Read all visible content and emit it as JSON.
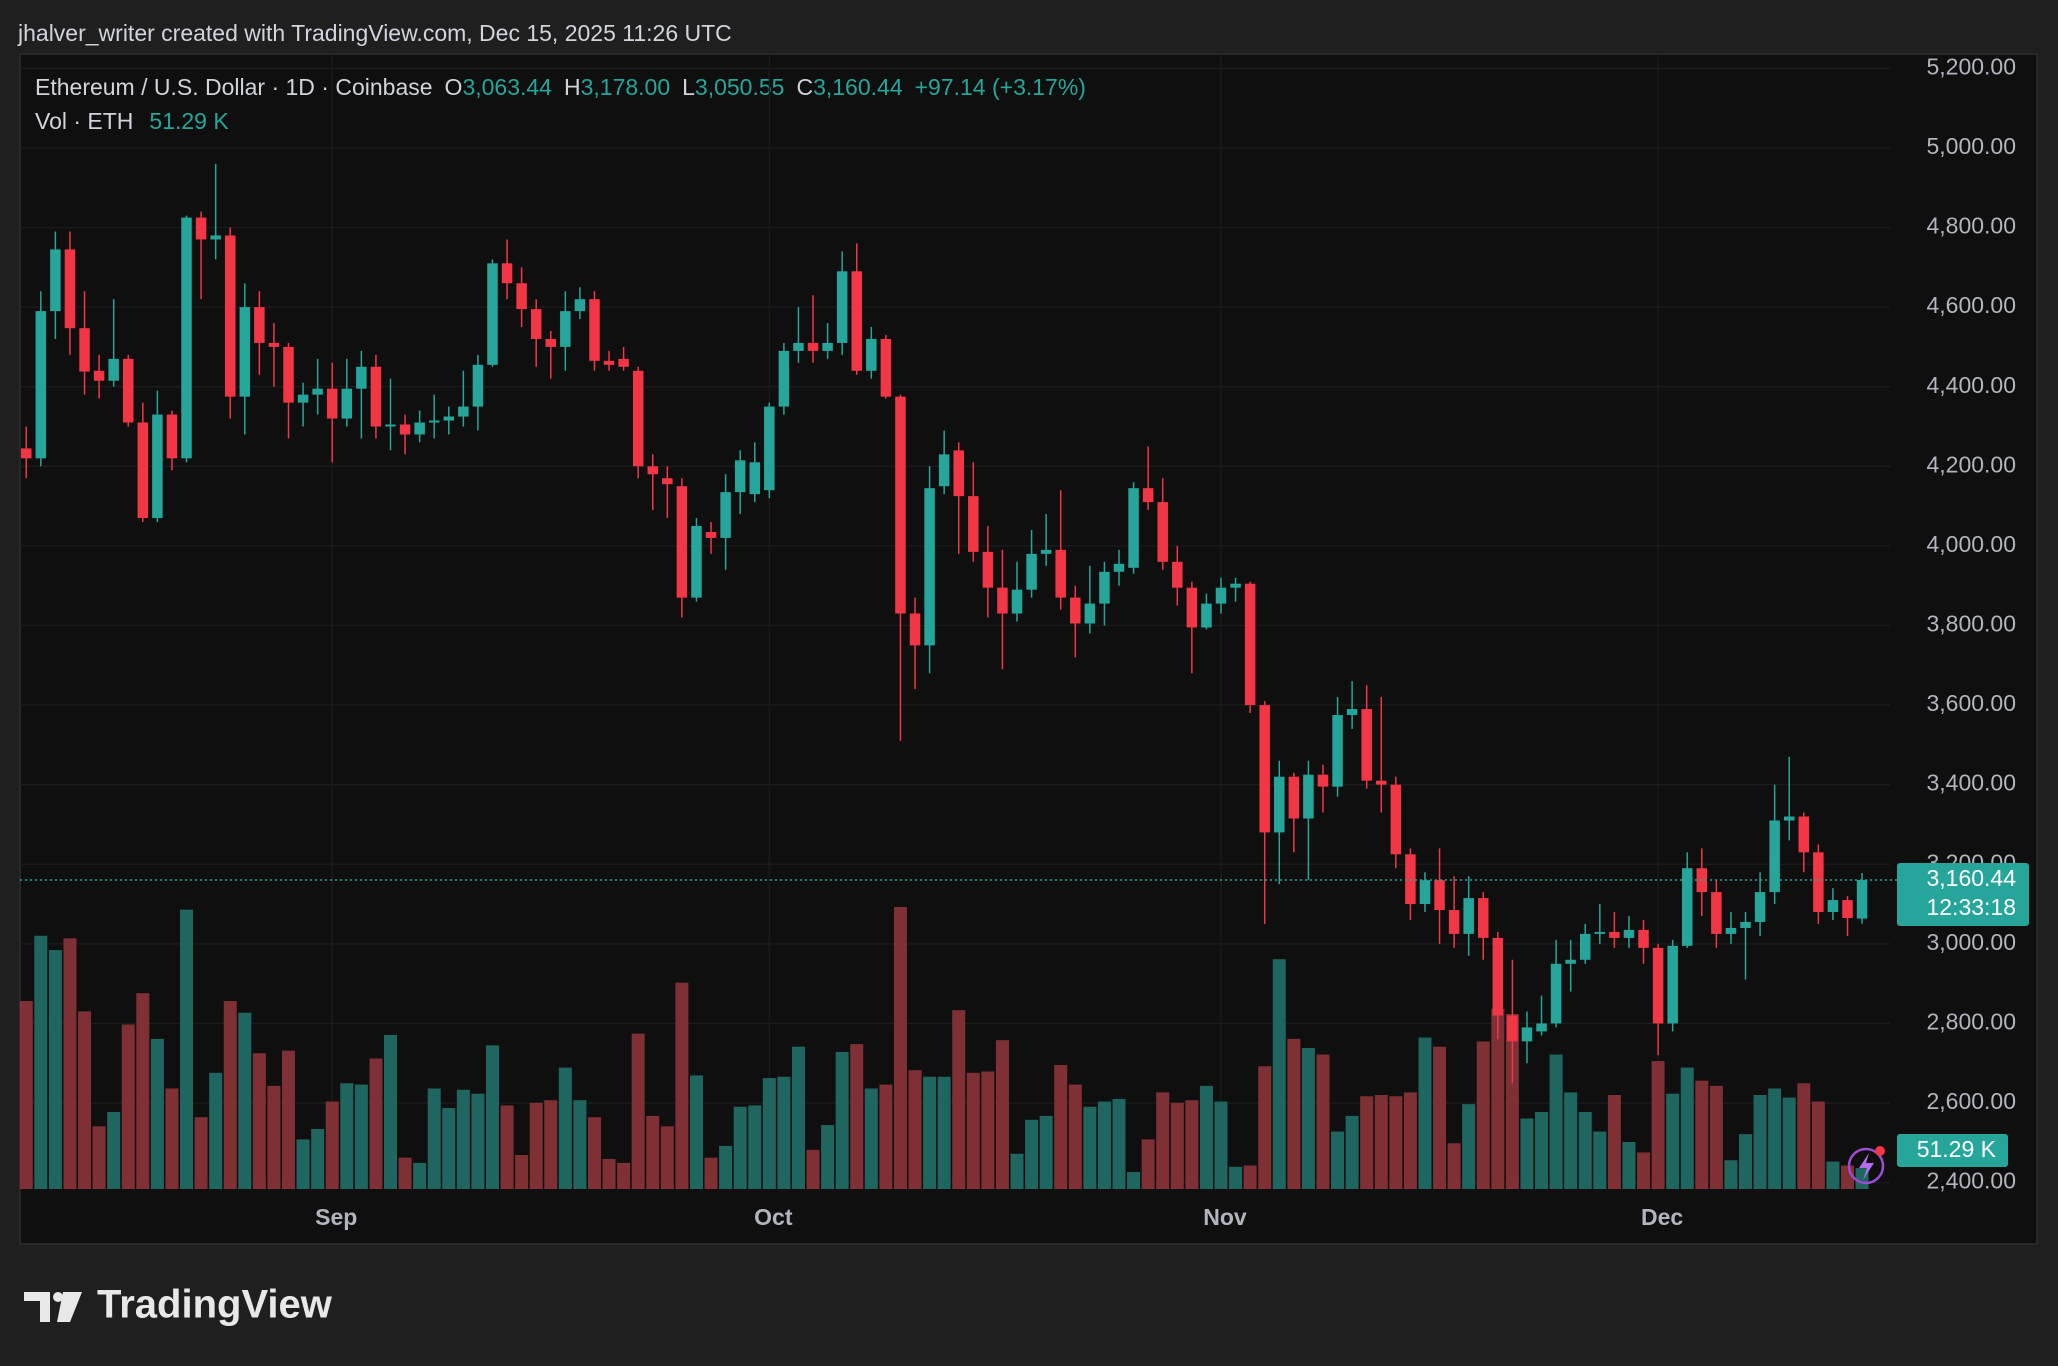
{
  "attribution": "jhalver_writer created with TradingView.com, Dec 15, 2025 11:26 UTC",
  "legend": {
    "symbol": "Ethereum / U.S. Dollar · 1D · Coinbase",
    "open_label": "O",
    "open": "3,063.44",
    "high_label": "H",
    "high": "3,178.00",
    "low_label": "L",
    "low": "3,050.55",
    "close_label": "C",
    "close": "3,160.44",
    "change": "+97.14 (+3.17%)",
    "volume_label": "Vol · ETH",
    "volume": "51.29 K"
  },
  "footer": {
    "brand": "TradingView"
  },
  "chart_data": {
    "type": "candlestick",
    "title": "Ethereum / U.S. Dollar · 1D · Coinbase",
    "up_color": "#26a69a",
    "down_color": "#f23645",
    "volume_up_color": "#1f6660",
    "volume_down_color": "#7f3034",
    "countdown": "12:33:18",
    "grid": true,
    "ylim": [
      2384,
      5236
    ],
    "yticks": [
      {
        "value": 2400,
        "label": "2,400.00"
      },
      {
        "value": 2600,
        "label": "2,600.00"
      },
      {
        "value": 2800,
        "label": "2,800.00"
      },
      {
        "value": 3000,
        "label": "3,000.00"
      },
      {
        "value": 3200,
        "label": "3,200.00"
      },
      {
        "value": 3400,
        "label": "3,400.00"
      },
      {
        "value": 3600,
        "label": "3,600.00"
      },
      {
        "value": 3800,
        "label": "3,800.00"
      },
      {
        "value": 4000,
        "label": "4,000.00"
      },
      {
        "value": 4200,
        "label": "4,200.00"
      },
      {
        "value": 4400,
        "label": "4,400.00"
      },
      {
        "value": 4600,
        "label": "4,600.00"
      },
      {
        "value": 4800,
        "label": "4,800.00"
      },
      {
        "value": 5000,
        "label": "5,000.00"
      },
      {
        "value": 5200,
        "label": "5,200.00"
      }
    ],
    "categories": [
      null,
      null,
      null,
      null,
      null,
      null,
      null,
      null,
      null,
      null,
      null,
      null,
      null,
      null,
      null,
      null,
      null,
      null,
      null,
      null,
      null,
      "Sep",
      null,
      null,
      null,
      null,
      null,
      null,
      null,
      null,
      null,
      null,
      null,
      null,
      null,
      null,
      null,
      null,
      null,
      null,
      null,
      null,
      null,
      null,
      null,
      null,
      null,
      null,
      null,
      null,
      null,
      "Oct",
      null,
      null,
      null,
      null,
      null,
      null,
      null,
      null,
      null,
      null,
      null,
      null,
      null,
      null,
      null,
      null,
      null,
      null,
      null,
      null,
      null,
      null,
      null,
      null,
      null,
      null,
      null,
      null,
      null,
      null,
      "Nov",
      null,
      null,
      null,
      null,
      null,
      null,
      null,
      null,
      null,
      null,
      null,
      null,
      null,
      null,
      null,
      null,
      null,
      null,
      null,
      null,
      null,
      null,
      null,
      null,
      null,
      null,
      null,
      null,
      null,
      "Dec",
      null,
      null,
      null,
      null,
      null,
      null,
      null,
      null,
      null,
      null,
      null,
      null,
      null,
      null
    ],
    "open": [
      4245,
      4220,
      4590,
      4745,
      4547,
      4440,
      4415,
      4470,
      4310,
      4070,
      4330,
      4220,
      4825,
      4770,
      4780,
      4375,
      4600,
      4510,
      4500,
      4360,
      4380,
      4395,
      4320,
      4395,
      4450,
      4300,
      4305,
      4280,
      4310,
      4315,
      4325,
      4350,
      4455,
      4710,
      4660,
      4595,
      4520,
      4500,
      4590,
      4620,
      4465,
      4470,
      4440,
      4200,
      4170,
      4150,
      3870,
      4035,
      4020,
      4135,
      4130,
      4140,
      4350,
      4490,
      4510,
      4490,
      4510,
      4690,
      4440,
      4520,
      4375,
      3830,
      3750,
      4150,
      4240,
      4125,
      3985,
      3895,
      3830,
      3890,
      3980,
      3990,
      3870,
      3805,
      3855,
      3935,
      3945,
      4145,
      4110,
      3960,
      3895,
      3795,
      3855,
      3895,
      3905,
      3600,
      3280,
      3420,
      3315,
      3425,
      3395,
      3575,
      3590,
      3410,
      3400,
      3225,
      3100,
      3160,
      3085,
      3025,
      3115,
      3015,
      2820,
      2755,
      2780,
      2800,
      2950,
      2960,
      3025,
      3030,
      3015,
      3035,
      2990,
      2800,
      2995,
      3190,
      3130,
      3025,
      3040,
      3055,
      3130,
      3310,
      3320,
      3230,
      3080,
      3110,
      3063.44
    ],
    "high": [
      4300,
      4640,
      4790,
      4790,
      4640,
      4480,
      4620,
      4480,
      4360,
      4390,
      4340,
      4830,
      4840,
      4960,
      4800,
      4660,
      4640,
      4560,
      4510,
      4410,
      4470,
      4460,
      4470,
      4490,
      4480,
      4420,
      4330,
      4340,
      4380,
      4350,
      4440,
      4480,
      4720,
      4770,
      4700,
      4620,
      4540,
      4640,
      4650,
      4640,
      4490,
      4500,
      4450,
      4230,
      4200,
      4170,
      4070,
      4060,
      4180,
      4240,
      4260,
      4360,
      4510,
      4600,
      4630,
      4560,
      4740,
      4760,
      4550,
      4530,
      4380,
      3870,
      4200,
      4290,
      4260,
      4210,
      4050,
      3990,
      3960,
      4040,
      4080,
      4140,
      3900,
      3950,
      3960,
      3990,
      4160,
      4250,
      4170,
      4000,
      3910,
      3880,
      3920,
      3920,
      3910,
      3610,
      3460,
      3430,
      3460,
      3450,
      3620,
      3660,
      3650,
      3620,
      3420,
      3240,
      3180,
      3240,
      3170,
      3170,
      3130,
      3030,
      2960,
      2830,
      2870,
      3010,
      3010,
      3050,
      3100,
      3080,
      3070,
      3060,
      3000,
      3010,
      3230,
      3240,
      3160,
      3080,
      3080,
      3180,
      3400,
      3470,
      3330,
      3250,
      3140,
      3120,
      3178
    ],
    "low": [
      4170,
      4200,
      4520,
      4480,
      4380,
      4370,
      4400,
      4300,
      4060,
      4060,
      4190,
      4210,
      4620,
      4720,
      4320,
      4280,
      4430,
      4400,
      4270,
      4300,
      4330,
      4210,
      4300,
      4270,
      4270,
      4240,
      4230,
      4260,
      4270,
      4280,
      4300,
      4290,
      4450,
      4620,
      4550,
      4450,
      4420,
      4440,
      4570,
      4440,
      4440,
      4440,
      4170,
      4090,
      4070,
      3820,
      3860,
      3980,
      3940,
      4080,
      4110,
      4120,
      4330,
      4460,
      4460,
      4470,
      4480,
      4430,
      4420,
      4370,
      3510,
      3640,
      3680,
      4130,
      3980,
      3960,
      3820,
      3690,
      3810,
      3870,
      3950,
      3840,
      3720,
      3780,
      3800,
      3900,
      3930,
      4090,
      3940,
      3850,
      3680,
      3790,
      3830,
      3860,
      3580,
      3050,
      3150,
      3230,
      3160,
      3330,
      3370,
      3540,
      3390,
      3330,
      3190,
      3060,
      3080,
      3000,
      2990,
      2970,
      2960,
      2760,
      2650,
      2700,
      2770,
      2790,
      2880,
      2950,
      3000,
      2990,
      2990,
      2950,
      2720,
      2780,
      2990,
      3070,
      2990,
      3000,
      2910,
      3020,
      3100,
      3260,
      3180,
      3050,
      3060,
      3020,
      3050.55
    ],
    "close": [
      4220,
      4590,
      4745,
      4547,
      4438,
      4415,
      4470,
      4310,
      4070,
      4330,
      4220,
      4825,
      4770,
      4780,
      4375,
      4600,
      4510,
      4500,
      4360,
      4380,
      4395,
      4320,
      4395,
      4450,
      4300,
      4305,
      4280,
      4310,
      4315,
      4325,
      4350,
      4455,
      4710,
      4660,
      4595,
      4520,
      4500,
      4590,
      4620,
      4465,
      4455,
      4450,
      4200,
      4180,
      4155,
      3870,
      4050,
      4020,
      4135,
      4215,
      4210,
      4350,
      4490,
      4510,
      4490,
      4510,
      4690,
      4440,
      4520,
      4375,
      3830,
      3750,
      4145,
      4230,
      4125,
      3985,
      3895,
      3830,
      3890,
      3980,
      3990,
      3870,
      3805,
      3855,
      3935,
      3955,
      4145,
      4110,
      3960,
      3895,
      3795,
      3855,
      3895,
      3905,
      3600,
      3280,
      3420,
      3315,
      3425,
      3395,
      3575,
      3590,
      3410,
      3400,
      3225,
      3100,
      3160,
      3085,
      3025,
      3115,
      3015,
      2820,
      2755,
      2790,
      2800,
      2950,
      2960,
      3025,
      3030,
      3015,
      3035,
      2990,
      2800,
      2995,
      3190,
      3130,
      3025,
      3040,
      3055,
      3130,
      3310,
      3320,
      3230,
      3080,
      3110,
      3065,
      3160.44
    ],
    "volume": [
      460800,
      620800,
      585600,
      614400,
      435200,
      153600,
      188800,
      403200,
      480000,
      368000,
      246400,
      684800,
      176000,
      284800,
      460800,
      432000,
      332800,
      252800,
      339200,
      121600,
      147200,
      214400,
      259200,
      256000,
      320000,
      377600,
      76800,
      64000,
      246400,
      198400,
      243200,
      233600,
      352000,
      204800,
      83200,
      211200,
      217600,
      297600,
      217600,
      176000,
      73600,
      64000,
      380800,
      179200,
      153600,
      505600,
      278400,
      76800,
      105600,
      201600,
      204800,
      272000,
      275200,
      348800,
      96000,
      156800,
      336000,
      355200,
      246400,
      256000,
      691200,
      291200,
      275200,
      275200,
      438400,
      284800,
      288000,
      364800,
      86400,
      169600,
      179200,
      304000,
      256000,
      201600,
      214400,
      220800,
      41600,
      121600,
      236800,
      211200,
      217600,
      252800,
      214400,
      54400,
      57600,
      300800,
      563200,
      368000,
      345600,
      329600,
      140800,
      179200,
      227200,
      230400,
      227200,
      236800,
      371200,
      348800,
      112000,
      208000,
      361600,
      441600,
      428800,
      172800,
      188800,
      329600,
      236800,
      188800,
      140800,
      230400,
      115200,
      89600,
      313600,
      233600,
      297600,
      265600,
      252800,
      70400,
      134400,
      230400,
      246400,
      224000,
      259200,
      214400,
      67200,
      57600,
      51290
    ]
  }
}
